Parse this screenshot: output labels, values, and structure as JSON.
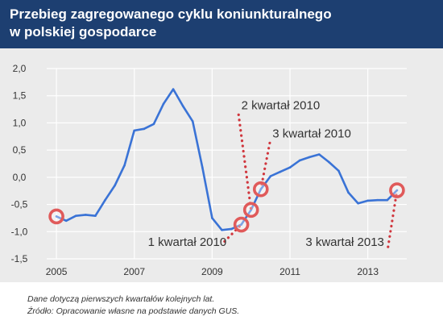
{
  "header": {
    "title_line1": "Przebieg zagregowanego cyklu koniunkturalnego",
    "title_line2": "w polskiej gospodarce"
  },
  "colors": {
    "header_bg": "#1d3f71",
    "plot_bg": "#ebebeb",
    "line": "#3a73d6",
    "marker": "#e05a5a",
    "callout": "#d0363d",
    "grid": "#ffffff",
    "text": "#333333"
  },
  "footnotes": {
    "line1": "Dane dotyczą pierwszych kwartałów kolejnych lat.",
    "line2": "Źródło: Opracowanie własne na podstawie danych GUS."
  },
  "chart_data": {
    "type": "line",
    "title": "Przebieg zagregowanego cyklu koniunkturalnego w polskiej gospodarce",
    "xlabel": "",
    "ylabel": "",
    "xlim": [
      2004.75,
      2014.0
    ],
    "ylim": [
      -1.5,
      2.0
    ],
    "x_ticks": [
      2005,
      2007,
      2009,
      2011,
      2013
    ],
    "x_tick_labels": [
      "2005",
      "2007",
      "2009",
      "2011",
      "2013"
    ],
    "y_ticks": [
      -1.5,
      -1.0,
      -0.5,
      0.0,
      0.5,
      1.0,
      1.5,
      2.0
    ],
    "y_tick_labels": [
      "-1,5",
      "-1,0",
      "-0,5",
      "0,0",
      "0,5",
      "1,0",
      "1,5",
      "2,0"
    ],
    "grid": true,
    "series": [
      {
        "x": [
          2005.0,
          2005.25,
          2005.5,
          2005.75,
          2006.0,
          2006.25,
          2006.5,
          2006.75,
          2007.0,
          2007.25,
          2007.5,
          2007.75,
          2008.0,
          2008.25,
          2008.5,
          2008.75,
          2009.0,
          2009.25,
          2009.5,
          2009.75,
          2010.0,
          2010.25,
          2010.5,
          2010.75,
          2011.0,
          2011.25,
          2011.5,
          2011.75,
          2012.0,
          2012.25,
          2012.5,
          2012.75,
          2013.0,
          2013.25,
          2013.5,
          2013.75
        ],
        "values": [
          -0.72,
          -0.8,
          -0.71,
          -0.69,
          -0.71,
          -0.42,
          -0.15,
          0.22,
          0.86,
          0.89,
          0.98,
          1.35,
          1.62,
          1.31,
          1.03,
          0.18,
          -0.75,
          -0.97,
          -0.95,
          -0.87,
          -0.6,
          -0.22,
          0.02,
          0.1,
          0.18,
          0.31,
          0.37,
          0.42,
          0.28,
          0.12,
          -0.28,
          -0.48,
          -0.43,
          -0.42,
          -0.42,
          -0.24
        ]
      }
    ],
    "highlighted_points": [
      {
        "x": 2005.0,
        "y": -0.72
      },
      {
        "x": 2009.75,
        "y": -0.87
      },
      {
        "x": 2010.0,
        "y": -0.6
      },
      {
        "x": 2010.25,
        "y": -0.22
      },
      {
        "x": 2013.75,
        "y": -0.24
      }
    ],
    "annotations": [
      {
        "text": "2 kwartał 2010",
        "point": {
          "x": 2010.0,
          "y": -0.6
        },
        "label_at": {
          "x": 2009.75,
          "y": 1.25
        },
        "leader_from": {
          "x": 2009.68,
          "y": 1.15
        }
      },
      {
        "text": "3 kwartał 2010",
        "point": {
          "x": 2010.25,
          "y": -0.22
        },
        "label_at": {
          "x": 2010.55,
          "y": 0.73
        },
        "leader_from": {
          "x": 2010.48,
          "y": 0.63
        }
      },
      {
        "text": "1 kwartał 2010",
        "point": {
          "x": 2009.75,
          "y": -0.87
        },
        "label_at": {
          "x": 2007.35,
          "y": -1.26
        },
        "leader_from": {
          "x": 2009.32,
          "y": -1.18
        }
      },
      {
        "text": "3 kwartał 2013",
        "point": {
          "x": 2013.75,
          "y": -0.24
        },
        "label_at": {
          "x": 2011.4,
          "y": -1.26
        },
        "leader_from": {
          "x": 2013.52,
          "y": -1.28
        }
      }
    ]
  }
}
